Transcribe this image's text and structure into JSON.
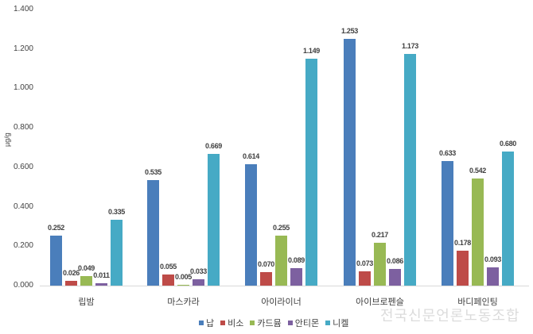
{
  "chart_data": {
    "type": "bar",
    "title": "",
    "xlabel": "",
    "ylabel": "µg/g",
    "ylim": [
      0,
      1.4
    ],
    "yticks": [
      "0.000",
      "0.200",
      "0.400",
      "0.600",
      "0.800",
      "1.000",
      "1.200",
      "1.400"
    ],
    "grid": false,
    "legend_position": "bottom",
    "categories": [
      "립밤",
      "마스카라",
      "아이라이너",
      "아이브로펜슬",
      "바디페인팅"
    ],
    "series": [
      {
        "name": "납",
        "color": "#4a7ebb",
        "values": [
          0.252,
          0.535,
          0.614,
          1.253,
          0.633
        ],
        "labels": [
          "0.252",
          "0.535",
          "0.614",
          "1.253",
          "0.633"
        ]
      },
      {
        "name": "비소",
        "color": "#be4b48",
        "values": [
          0.026,
          0.055,
          0.07,
          0.073,
          0.178
        ],
        "labels": [
          "0.026",
          "0.055",
          "0.070",
          "0.073",
          "0.178"
        ]
      },
      {
        "name": "카드뮴",
        "color": "#98b954",
        "values": [
          0.049,
          0.005,
          0.255,
          0.217,
          0.542
        ],
        "labels": [
          "0.049",
          "0.005",
          "0.255",
          "0.217",
          "0.542"
        ]
      },
      {
        "name": "안티몬",
        "color": "#7d60a0",
        "values": [
          0.011,
          0.033,
          0.089,
          0.086,
          0.093
        ],
        "labels": [
          "0.011",
          "0.033",
          "0.089",
          "0.086",
          "0.093"
        ]
      },
      {
        "name": "니켈",
        "color": "#46aac5",
        "values": [
          0.335,
          0.669,
          1.149,
          1.173,
          0.68
        ],
        "labels": [
          "0.335",
          "0.669",
          "1.149",
          "1.173",
          "0.680"
        ]
      }
    ]
  },
  "watermark": "전국신문언론노동조합"
}
